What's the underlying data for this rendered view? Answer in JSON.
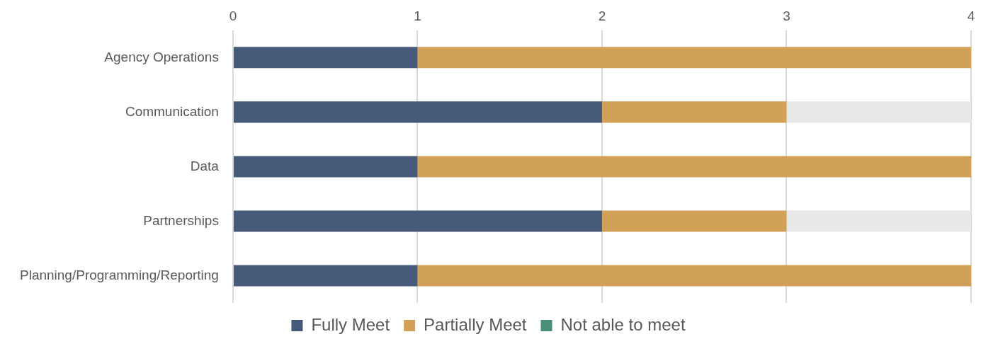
{
  "chart_data": {
    "type": "bar",
    "orientation": "horizontal",
    "stacked": true,
    "categories": [
      "Agency Operations",
      "Communication",
      "Data",
      "Partnerships",
      "Planning/Programming/Reporting"
    ],
    "series": [
      {
        "name": "Fully Meet",
        "color": "#465a7a",
        "values": [
          1,
          2,
          1,
          2,
          1
        ]
      },
      {
        "name": "Partially Meet",
        "color": "#d1a157",
        "values": [
          3,
          1,
          3,
          1,
          3
        ]
      },
      {
        "name": "Not able to meet",
        "color": "#4a8f75",
        "values": [
          0,
          0,
          0,
          0,
          0
        ]
      },
      {
        "color": "#e8e8e8",
        "values": [
          0,
          1,
          0,
          1,
          0
        ]
      }
    ],
    "xlim": [
      0,
      4
    ],
    "xticks": [
      0,
      1,
      2,
      3,
      4
    ],
    "grid": "x",
    "legend": "bottom"
  }
}
